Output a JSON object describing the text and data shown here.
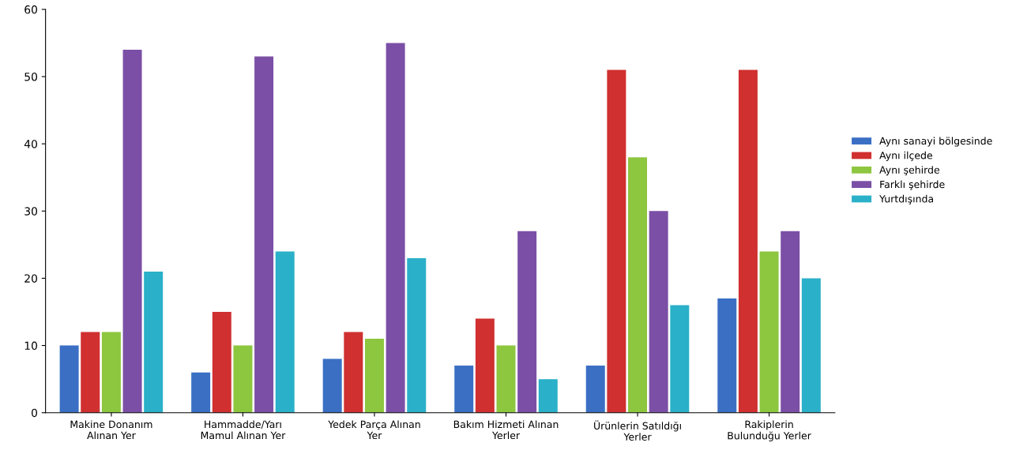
{
  "chart_data": {
    "type": "bar",
    "categories": [
      "Makine Donanım\nAlınan Yer",
      "Hammadde/Yarı\nMamul Alınan Yer",
      "Yedek Parça Alınan\nYer",
      "Bakım Hizmeti Alınan\nYerler",
      "Ürünlerin Satıldığı\nYerler",
      "Rakiplerin\nBulunduğu Yerler"
    ],
    "series": [
      {
        "name": "Aynı sanayi bölgesinde",
        "color": "#3a6fc4",
        "values": [
          10,
          6,
          8,
          7,
          7,
          17
        ]
      },
      {
        "name": "Aynı ilçede",
        "color": "#d03030",
        "values": [
          12,
          15,
          12,
          14,
          51,
          51
        ]
      },
      {
        "name": "Aynı şehirde",
        "color": "#8dc63f",
        "values": [
          12,
          10,
          11,
          10,
          38,
          24
        ]
      },
      {
        "name": "Farklı şehirde",
        "color": "#7b4fa6",
        "values": [
          54,
          53,
          55,
          27,
          30,
          27
        ]
      },
      {
        "name": "Yurtdışında",
        "color": "#2ab0c8",
        "values": [
          21,
          24,
          23,
          5,
          16,
          20
        ]
      }
    ],
    "ylim": [
      0,
      60
    ],
    "yticks": [
      0,
      10,
      20,
      30,
      40,
      50,
      60
    ],
    "grid": false,
    "legend": "right"
  }
}
